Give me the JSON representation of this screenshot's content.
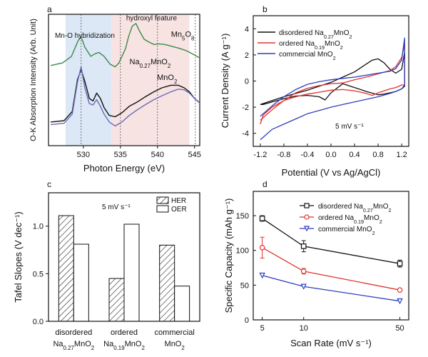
{
  "panels": {
    "a": "a",
    "b": "b",
    "c": "c",
    "d": "d"
  },
  "colors": {
    "black": "#111111",
    "red": "#e0332f",
    "blue": "#2f3fbf",
    "green": "#3a8a4a",
    "purple": "#6a6ab8",
    "shade_blue": "#dce8f5",
    "shade_pink": "#f8e3e3",
    "annot_red": "#a0302a",
    "annot_orange": "#e69a3a"
  },
  "chart_data": [
    {
      "id": "a",
      "type": "line",
      "xlabel": "Photon Energy (eV)",
      "ylabel": "O-K Absorption Intensity (Arb. Unit)",
      "xlim": [
        525.3,
        545.7
      ],
      "xticks": [
        "530",
        "535",
        "540",
        "545"
      ],
      "xtick_values": [
        530,
        535,
        540,
        545
      ],
      "dashed_lines_x": [
        529.7,
        535.0,
        540.0,
        545.1
      ],
      "shaded_regions": [
        {
          "from": 527.6,
          "to": 533.8,
          "color": "blue"
        },
        {
          "from": 533.8,
          "to": 544.3,
          "color": "pink"
        }
      ],
      "annotations": [
        {
          "text": "Mn-O hybridization",
          "x": 530.2,
          "y": 0.82,
          "color": "annot_red"
        },
        {
          "text": "hydroxyl feature",
          "x": 539.2,
          "y": 0.955,
          "color": "annot_orange"
        }
      ],
      "series": [
        {
          "name": "Mn5O8",
          "color": "green",
          "label_x": 543.4,
          "label_y": 0.83,
          "x": [
            525.6,
            527.2,
            528.4,
            529.3,
            529.7,
            530.2,
            531.0,
            531.6,
            532.1,
            532.8,
            533.6,
            534.3,
            534.8,
            535.2,
            535.7,
            536.1,
            536.6,
            537.1,
            537.6,
            538.2,
            538.8,
            539.5,
            540.2,
            541.0,
            542.0,
            543.0,
            544.0,
            545.0,
            545.6
          ],
          "y": [
            0.61,
            0.63,
            0.68,
            0.8,
            0.83,
            0.75,
            0.68,
            0.7,
            0.71,
            0.68,
            0.62,
            0.6,
            0.63,
            0.68,
            0.74,
            0.83,
            0.91,
            0.93,
            0.87,
            0.81,
            0.79,
            0.77,
            0.775,
            0.77,
            0.755,
            0.74,
            0.72,
            0.69,
            0.67
          ]
        },
        {
          "name": "Na0.27MnO2",
          "color": "black",
          "label_x": 539.0,
          "label_y": 0.62,
          "x": [
            525.6,
            527.4,
            528.5,
            529.2,
            529.7,
            530.2,
            530.8,
            531.3,
            531.8,
            532.3,
            532.8,
            533.5,
            534.3,
            535.2,
            536.2,
            537.2,
            538.3,
            539.5,
            540.6,
            541.8,
            542.8,
            543.6,
            544.3,
            545.0,
            545.6
          ],
          "y": [
            0.18,
            0.19,
            0.26,
            0.5,
            0.58,
            0.49,
            0.36,
            0.34,
            0.4,
            0.36,
            0.29,
            0.23,
            0.22,
            0.25,
            0.3,
            0.33,
            0.37,
            0.41,
            0.44,
            0.46,
            0.46,
            0.44,
            0.41,
            0.36,
            0.33
          ]
        },
        {
          "name": "MnO2",
          "color": "purple",
          "label_x": 541.3,
          "label_y": 0.5,
          "x": [
            525.6,
            527.4,
            528.5,
            529.2,
            529.7,
            530.2,
            530.8,
            531.3,
            531.8,
            532.3,
            532.8,
            533.5,
            534.3,
            535.2,
            536.2,
            537.2,
            538.3,
            539.5,
            540.6,
            541.8,
            542.8,
            543.6,
            544.3,
            545.0,
            545.6
          ],
          "y": [
            0.16,
            0.17,
            0.24,
            0.48,
            0.6,
            0.44,
            0.32,
            0.31,
            0.35,
            0.3,
            0.24,
            0.18,
            0.15,
            0.18,
            0.23,
            0.27,
            0.31,
            0.35,
            0.38,
            0.41,
            0.43,
            0.425,
            0.4,
            0.36,
            0.33
          ]
        }
      ]
    },
    {
      "id": "b",
      "type": "line",
      "xlabel": "Potential (V vs Ag/AgCl)",
      "ylabel": "Current Density (A g⁻¹)",
      "xlim": [
        -1.32,
        1.32
      ],
      "ylim": [
        -5,
        5
      ],
      "xticks": [
        "-1.2",
        "-0.8",
        "-0.4",
        "0.0",
        "0.4",
        "0.8",
        "1.2"
      ],
      "xtick_values": [
        -1.2,
        -0.8,
        -0.4,
        0.0,
        0.4,
        0.8,
        1.2
      ],
      "yticks": [
        "-4",
        "-2",
        "0",
        "2",
        "4"
      ],
      "ytick_values": [
        -4,
        -2,
        0,
        2,
        4
      ],
      "annotation": "5 mV s⁻¹",
      "legend_position": "top-left",
      "series": [
        {
          "name": "disordered Na0.27MnO2",
          "color": "black",
          "x": [
            -1.2,
            -1.0,
            -0.8,
            -0.6,
            -0.4,
            -0.2,
            0.0,
            0.2,
            0.4,
            0.6,
            0.7,
            0.8,
            0.9,
            1.0,
            1.1,
            1.2,
            1.25,
            1.25,
            1.2,
            1.1,
            1.0,
            0.9,
            0.8,
            0.6,
            0.4,
            0.2,
            0.0,
            -0.1,
            -0.2,
            -0.4,
            -0.6,
            -0.8,
            -1.0,
            -1.15,
            -1.2
          ],
          "y": [
            -1.8,
            -1.5,
            -1.2,
            -0.95,
            -0.7,
            -0.4,
            -0.1,
            0.3,
            0.7,
            1.3,
            1.6,
            1.7,
            1.4,
            0.9,
            0.6,
            0.9,
            2.2,
            -0.4,
            -0.6,
            -0.8,
            -0.9,
            -1.0,
            -1.05,
            -0.8,
            -0.5,
            -0.2,
            -0.9,
            -1.45,
            -1.2,
            -1.1,
            -1.15,
            -1.35,
            -1.6,
            -1.8,
            -1.8
          ]
        },
        {
          "name": "ordered Na0.19MnO2",
          "color": "red",
          "x": [
            -1.2,
            -1.0,
            -0.8,
            -0.6,
            -0.4,
            -0.2,
            0.0,
            0.2,
            0.4,
            0.6,
            0.8,
            1.0,
            1.1,
            1.2,
            1.25,
            1.25,
            1.2,
            1.1,
            1.0,
            0.8,
            0.7,
            0.6,
            0.4,
            0.2,
            0.0,
            -0.2,
            -0.4,
            -0.6,
            -0.8,
            -1.0,
            -1.15,
            -1.2
          ],
          "y": [
            -3.0,
            -2.2,
            -1.5,
            -0.9,
            -0.55,
            -0.35,
            -0.2,
            -0.15,
            0.1,
            0.3,
            0.55,
            0.8,
            1.1,
            1.8,
            2.8,
            -0.3,
            -0.3,
            -0.5,
            -0.6,
            -0.9,
            -1.1,
            -0.95,
            -0.75,
            -0.65,
            -0.7,
            -0.85,
            -1.0,
            -1.2,
            -1.5,
            -2.0,
            -2.6,
            -3.3
          ]
        },
        {
          "name": "commercial MnO2",
          "color": "blue",
          "x": [
            -1.2,
            -1.0,
            -0.8,
            -0.6,
            -0.4,
            -0.2,
            0.0,
            0.2,
            0.4,
            0.6,
            0.8,
            1.0,
            1.1,
            1.2,
            1.25,
            1.25,
            1.2,
            1.1,
            1.0,
            0.8,
            0.6,
            0.4,
            0.2,
            0.0,
            -0.2,
            -0.4,
            -0.6,
            -0.8,
            -1.0,
            -1.1,
            -1.2
          ],
          "y": [
            -2.7,
            -1.9,
            -1.2,
            -0.65,
            -0.25,
            -0.05,
            0.1,
            0.2,
            0.3,
            0.45,
            0.6,
            0.75,
            0.95,
            1.6,
            3.3,
            -0.3,
            -0.6,
            -0.8,
            -0.95,
            -1.2,
            -1.4,
            -1.6,
            -1.8,
            -2.0,
            -2.25,
            -2.5,
            -2.9,
            -3.3,
            -3.7,
            -4.1,
            -4.5
          ]
        }
      ]
    },
    {
      "id": "c",
      "type": "bar",
      "ylabel": "Tafel Slopes (V dec⁻¹)",
      "ylim": [
        0,
        1.35
      ],
      "yticks": [
        "0.0",
        "0.5",
        "1.0"
      ],
      "ytick_values": [
        0,
        0.5,
        1.0
      ],
      "annotation": "5 mV s⁻¹",
      "legend_position": "top-right",
      "categories": [
        {
          "line1": "disordered",
          "line2": "Na0.27MnO2"
        },
        {
          "line1": "ordered",
          "line2": "Na0.19MnO2"
        },
        {
          "line1": "commercial",
          "line2": "MnO2"
        }
      ],
      "series": [
        {
          "name": "HER",
          "pattern": "hatch",
          "values": [
            1.11,
            0.45,
            0.8
          ]
        },
        {
          "name": "OER",
          "pattern": "open",
          "values": [
            0.81,
            1.02,
            0.37
          ]
        }
      ]
    },
    {
      "id": "d",
      "type": "line",
      "xlabel": "Scan Rate (mV s⁻¹)",
      "ylabel": "Specific Capacity (mAh g⁻¹)",
      "xscale": "log",
      "xlim": [
        4.3,
        58
      ],
      "ylim": [
        0,
        185
      ],
      "xticks": [
        "5",
        "10",
        "50"
      ],
      "xtick_values": [
        5,
        10,
        50
      ],
      "yticks": [
        "0",
        "50",
        "100",
        "150"
      ],
      "ytick_values": [
        0,
        50,
        100,
        150
      ],
      "legend_position": "top-right",
      "series": [
        {
          "name": "disordered Na0.27MnO2",
          "color": "black",
          "marker": "square",
          "x": [
            5,
            10,
            50
          ],
          "y": [
            146,
            106,
            81
          ],
          "err": [
            4,
            8,
            5
          ]
        },
        {
          "name": "ordered Na0.19MnO2",
          "color": "red",
          "marker": "circle",
          "x": [
            5,
            10,
            50
          ],
          "y": [
            104,
            70,
            43
          ],
          "err": [
            15,
            4,
            0
          ]
        },
        {
          "name": "commercial MnO2",
          "color": "blue",
          "marker": "triangle-down",
          "x": [
            5,
            10,
            50
          ],
          "y": [
            64,
            48,
            27
          ],
          "err": [
            0,
            0,
            0
          ]
        }
      ]
    }
  ]
}
